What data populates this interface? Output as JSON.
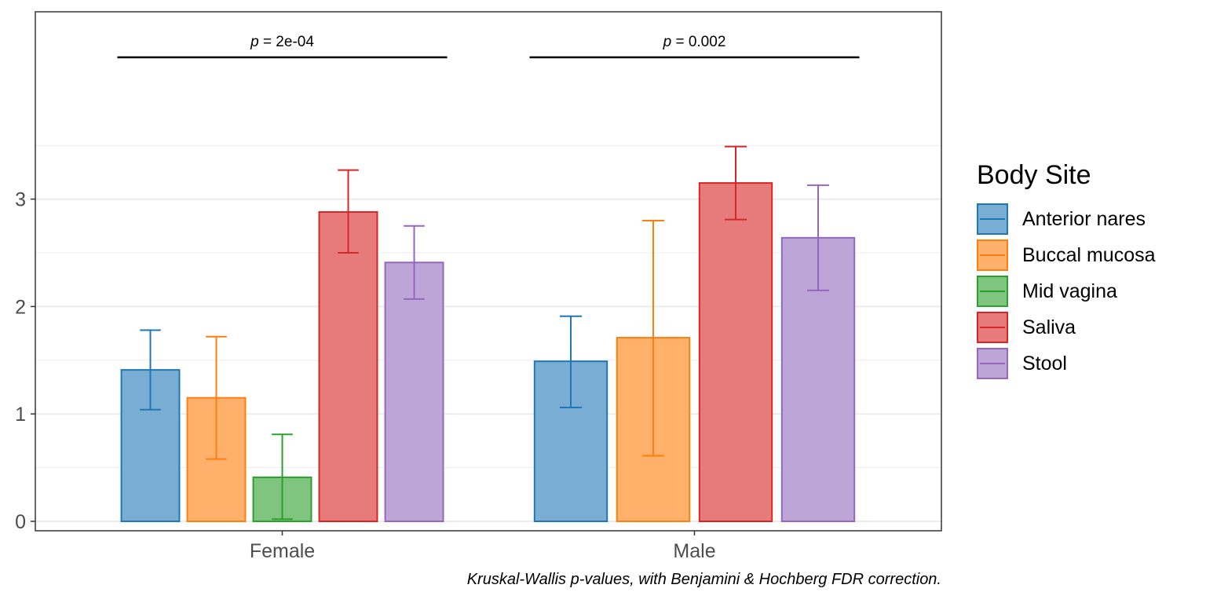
{
  "chart_data": {
    "type": "bar",
    "categories": [
      "Female",
      "Male"
    ],
    "ylim": [
      0,
      4.42
    ],
    "y_ticks": [
      0,
      1,
      2,
      3
    ],
    "grid": true,
    "legend": {
      "title": "Body Site",
      "placement": "right"
    },
    "series": [
      {
        "name": "Anterior nares",
        "color": "#1f77b4",
        "fill": "#7aadd3",
        "values": [
          1.41,
          1.49
        ],
        "err_low": [
          1.04,
          1.06
        ],
        "err_high": [
          1.78,
          1.91
        ]
      },
      {
        "name": "Buccal mucosa",
        "color": "#ff7f0e",
        "fill": "#ffb06b",
        "values": [
          1.15,
          1.71
        ],
        "err_low": [
          0.58,
          0.61
        ],
        "err_high": [
          1.72,
          2.8
        ]
      },
      {
        "name": "Mid vagina",
        "color": "#2ca02c",
        "fill": "#80c57f",
        "values": [
          0.41,
          null
        ],
        "err_low": [
          0.02,
          null
        ],
        "err_high": [
          0.81,
          null
        ]
      },
      {
        "name": "Saliva",
        "color": "#d62728",
        "fill": "#e77b7c",
        "values": [
          2.88,
          3.15
        ],
        "err_low": [
          2.5,
          2.81
        ],
        "err_high": [
          3.27,
          3.49
        ]
      },
      {
        "name": "Stool",
        "color": "#9467bd",
        "fill": "#bea5d8",
        "values": [
          2.41,
          2.64
        ],
        "err_low": [
          2.07,
          2.15
        ],
        "err_high": [
          2.75,
          3.13
        ]
      }
    ],
    "annotations": [
      {
        "category": "Female",
        "p_prefix": "p",
        "p_text": " = 2e-04"
      },
      {
        "category": "Male",
        "p_prefix": "p",
        "p_text": " = 0.002"
      }
    ],
    "caption": "Kruskal-Wallis p-values, with Benjamini & Hochberg FDR correction."
  }
}
